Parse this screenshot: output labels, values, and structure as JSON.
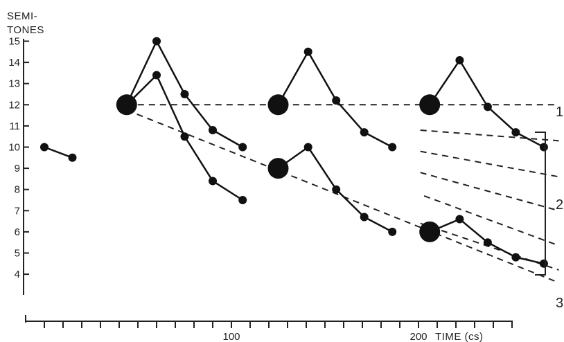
{
  "chart_data": {
    "type": "line",
    "title": "",
    "ylabel": [
      "SEMI-",
      "TONES"
    ],
    "xlabel": "TIME (cs)",
    "ylim": [
      3.5,
      15.3
    ],
    "xlim": [
      -10,
      260
    ],
    "y_ticks": [
      4,
      5,
      6,
      7,
      8,
      9,
      10,
      11,
      12,
      13,
      14,
      15
    ],
    "x_minor_ticks": [
      0,
      10,
      20,
      30,
      40,
      50,
      60,
      70,
      80,
      90,
      100,
      110,
      120,
      130,
      140,
      150,
      160,
      170,
      180,
      190,
      200,
      210,
      220,
      230,
      240,
      250
    ],
    "x_tick_labels": [
      {
        "x": 100,
        "label": "100"
      },
      {
        "x": 200,
        "label": "200"
      }
    ],
    "grid": false,
    "series": [
      {
        "points": [
          [
            0,
            10.0
          ],
          [
            15,
            9.5
          ]
        ]
      },
      {
        "points": [
          [
            44,
            12.0
          ],
          [
            60,
            15.0
          ],
          [
            75,
            12.5
          ],
          [
            90,
            10.8
          ],
          [
            106,
            10.0
          ]
        ]
      },
      {
        "points": [
          [
            44,
            12.0
          ],
          [
            60,
            13.4
          ],
          [
            75,
            10.5
          ],
          [
            90,
            8.4
          ],
          [
            106,
            7.5
          ]
        ]
      },
      {
        "points": [
          [
            125,
            12.0
          ],
          [
            141,
            14.5
          ],
          [
            156,
            12.2
          ],
          [
            171,
            10.7
          ],
          [
            186,
            10.0
          ]
        ]
      },
      {
        "points": [
          [
            125,
            9.0
          ],
          [
            141,
            10.0
          ],
          [
            156,
            8.0
          ],
          [
            171,
            6.7
          ],
          [
            186,
            6.0
          ]
        ]
      },
      {
        "points": [
          [
            206,
            12.0
          ],
          [
            222,
            14.1
          ],
          [
            237,
            11.9
          ],
          [
            252,
            10.7
          ],
          [
            267,
            10.0
          ]
        ]
      },
      {
        "points": [
          [
            206,
            6.0
          ],
          [
            222,
            6.6
          ],
          [
            237,
            5.5
          ],
          [
            252,
            4.8
          ],
          [
            267,
            4.5
          ]
        ]
      }
    ],
    "large_markers": [
      [
        44,
        12.0
      ],
      [
        125,
        12.0
      ],
      [
        206,
        12.0
      ],
      [
        125,
        9.0
      ],
      [
        206,
        6.0
      ]
    ],
    "declination_lines": [
      {
        "from": [
          44,
          12.0
        ],
        "to": [
          275,
          12.0
        ]
      },
      {
        "from": [
          44,
          11.75
        ],
        "to": [
          275,
          3.6
        ]
      },
      {
        "from": [
          201,
          10.8
        ],
        "to": [
          275,
          10.3
        ]
      },
      {
        "from": [
          201,
          9.8
        ],
        "to": [
          275,
          8.6
        ]
      },
      {
        "from": [
          201,
          8.8
        ],
        "to": [
          275,
          7.0
        ]
      },
      {
        "from": [
          203,
          7.7
        ],
        "to": [
          275,
          5.35
        ]
      },
      {
        "from": [
          201,
          6.4
        ],
        "to": [
          275,
          4.2
        ]
      }
    ],
    "side_labels": [
      "1",
      "2",
      "3"
    ]
  }
}
